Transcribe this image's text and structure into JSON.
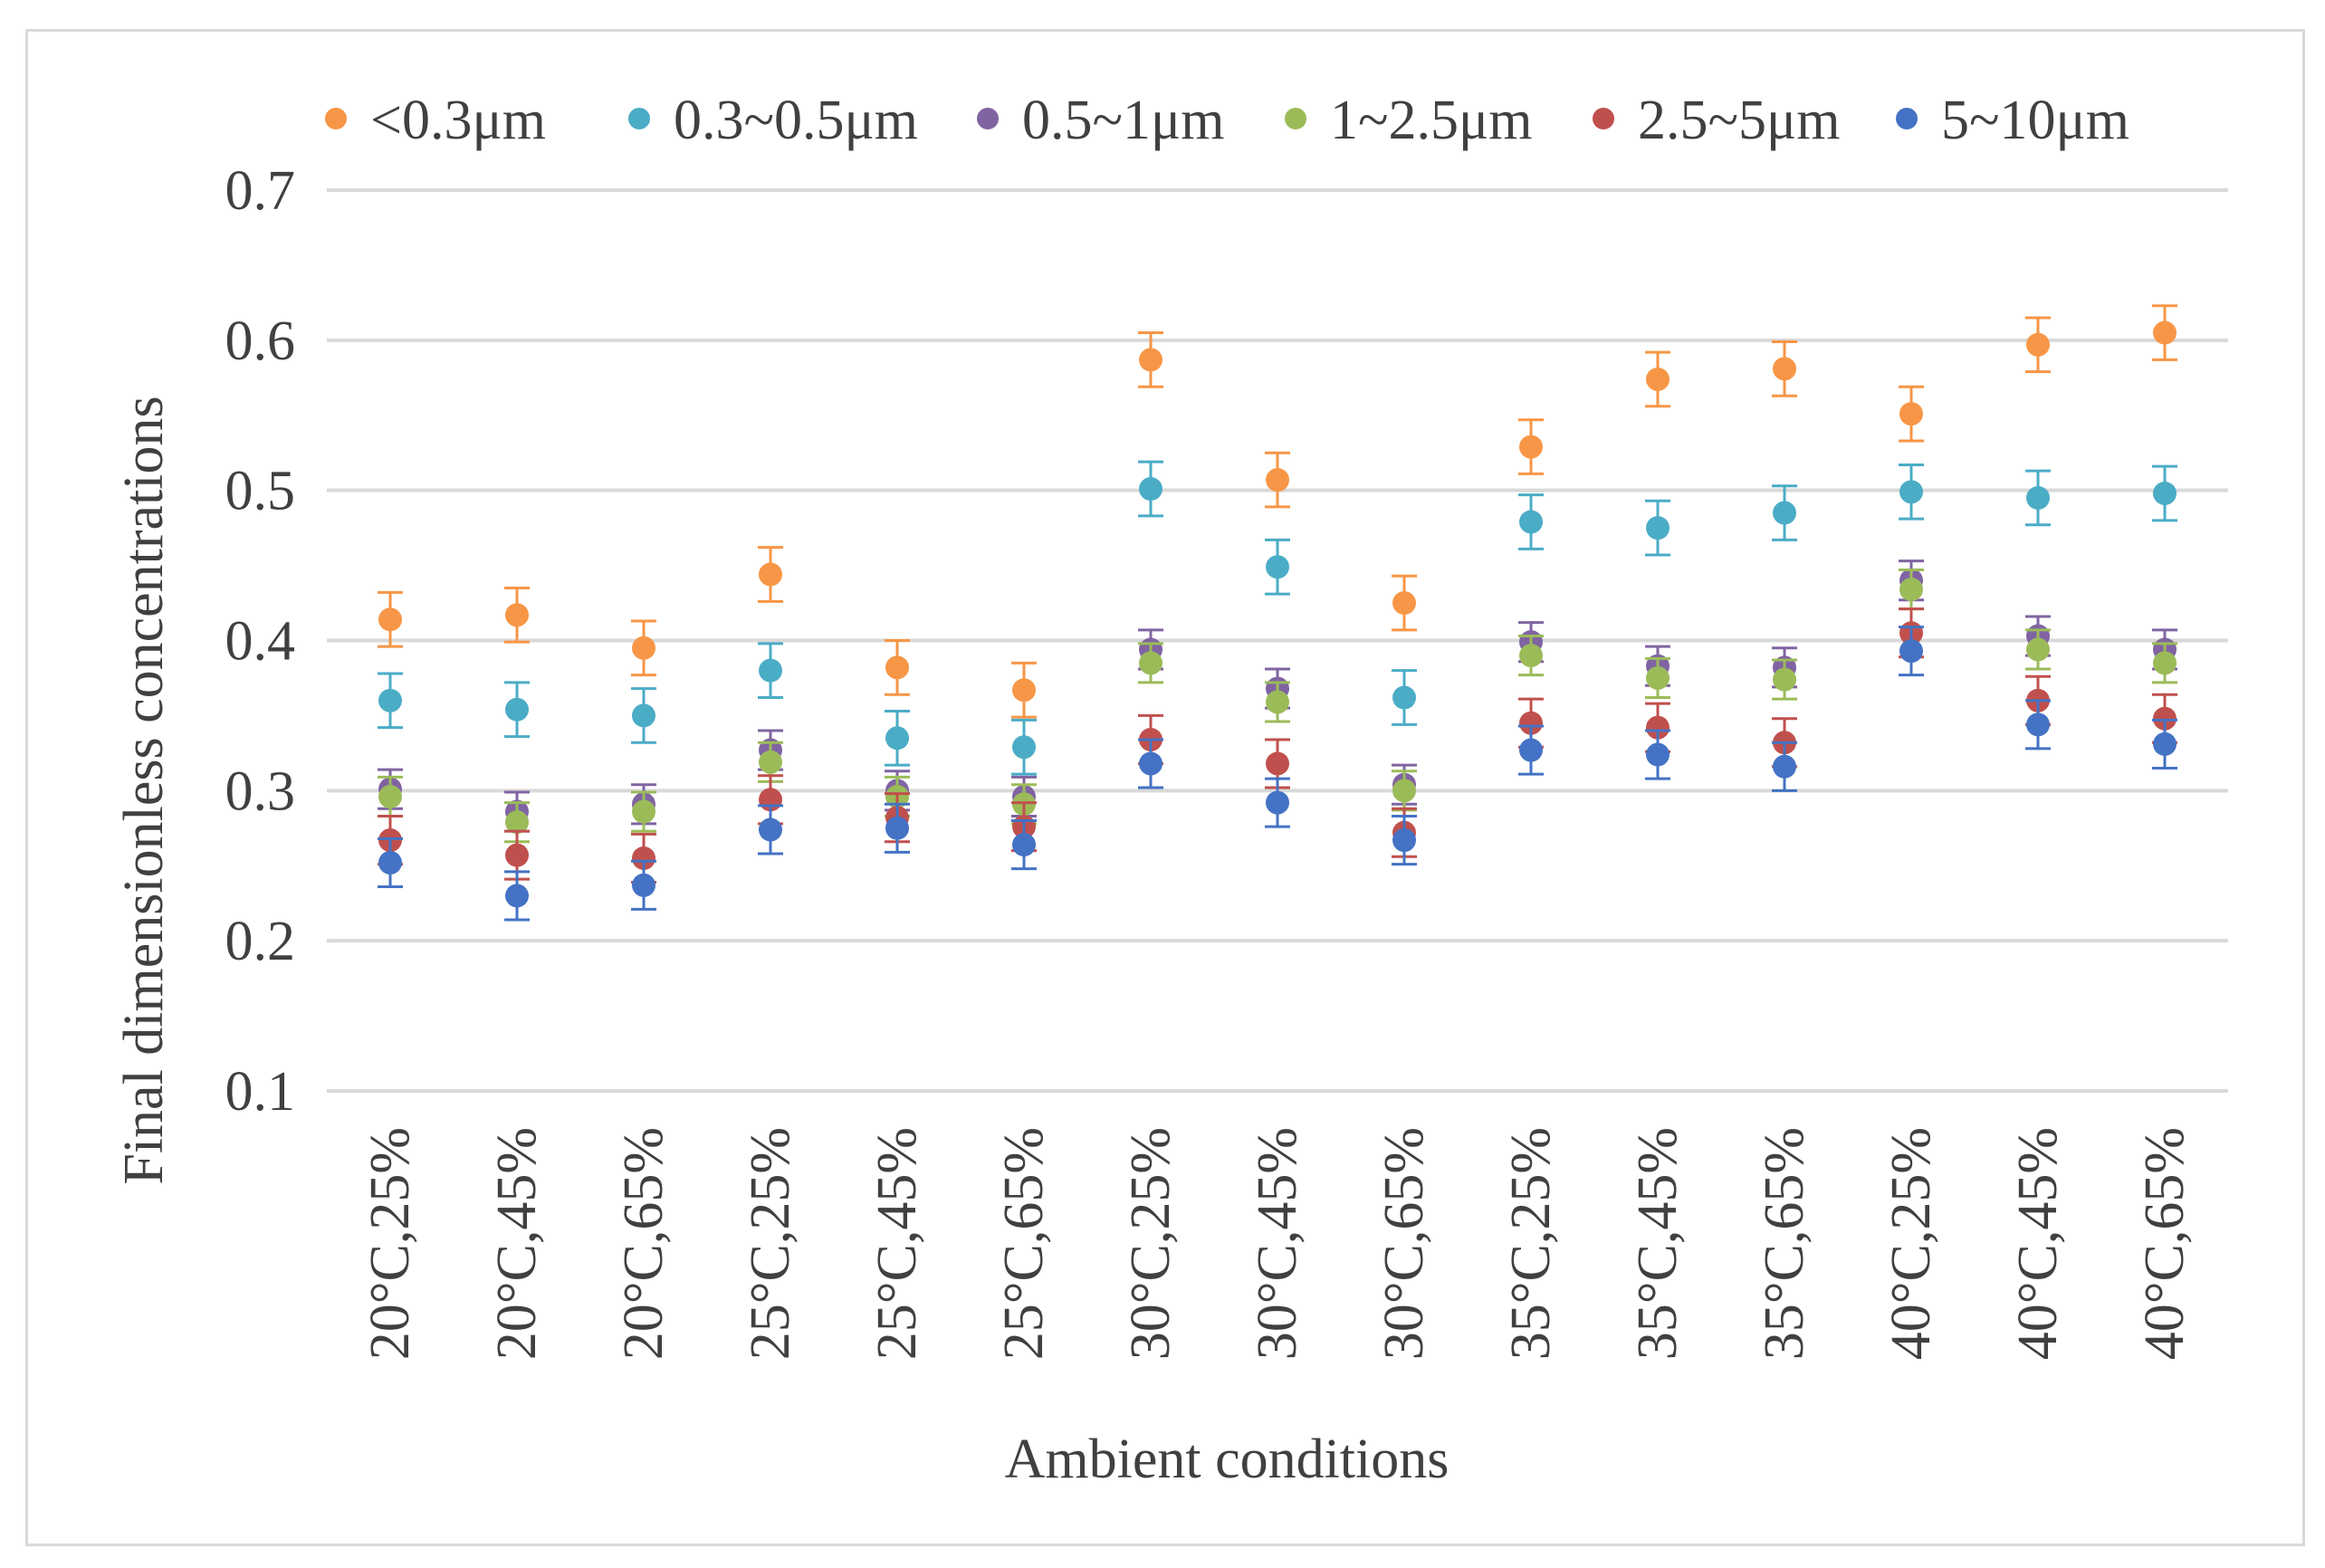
{
  "chart_data": {
    "type": "scatter",
    "title": "",
    "xlabel": "Ambient conditions",
    "ylabel": "Final dimensionless concentrations",
    "ylim": [
      0.1,
      0.7
    ],
    "yticks": [
      "0.1",
      "0.2",
      "0.3",
      "0.4",
      "0.5",
      "0.6",
      "0.7"
    ],
    "ytick_values": [
      0.1,
      0.2,
      0.3,
      0.4,
      0.5,
      0.6,
      0.7
    ],
    "grid": true,
    "legend_position": "top",
    "categories": [
      "20°C,25%",
      "20°C,45%",
      "20°C,65%",
      "25°C,25%",
      "25°C,45%",
      "25°C,65%",
      "30°C,25%",
      "30°C,45%",
      "30°C,65%",
      "35°C,25%",
      "35°C,45%",
      "35°C,65%",
      "40°C,25%",
      "40°C,45%",
      "40°C,65%"
    ],
    "series": [
      {
        "name": "<0.3μm",
        "color": "#F79646",
        "values": [
          0.414,
          0.417,
          0.395,
          0.444,
          0.382,
          0.367,
          0.587,
          0.507,
          0.425,
          0.529,
          0.574,
          0.581,
          0.551,
          0.597,
          0.605
        ],
        "error": 0.018
      },
      {
        "name": "0.3~0.5μm",
        "color": "#4BACC6",
        "values": [
          0.36,
          0.354,
          0.35,
          0.38,
          0.335,
          0.329,
          0.501,
          0.449,
          0.362,
          0.479,
          0.475,
          0.485,
          0.499,
          0.495,
          0.498
        ],
        "error": 0.018
      },
      {
        "name": "0.5~1μm",
        "color": "#8064A2",
        "values": [
          0.301,
          0.286,
          0.291,
          0.327,
          0.3,
          0.296,
          0.394,
          0.368,
          0.304,
          0.399,
          0.383,
          0.382,
          0.44,
          0.403,
          0.394
        ],
        "error": 0.013
      },
      {
        "name": "1~2.5μm",
        "color": "#9BBB59",
        "values": [
          0.296,
          0.279,
          0.286,
          0.319,
          0.296,
          0.291,
          0.385,
          0.359,
          0.3,
          0.39,
          0.375,
          0.374,
          0.434,
          0.394,
          0.385
        ],
        "error": 0.013
      },
      {
        "name": "2.5~5μm",
        "color": "#C0504D",
        "values": [
          0.267,
          0.257,
          0.255,
          0.294,
          0.282,
          0.276,
          0.334,
          0.318,
          0.272,
          0.345,
          0.342,
          0.332,
          0.405,
          0.36,
          0.348
        ],
        "error": 0.016
      },
      {
        "name": "5~10μm",
        "color": "#4472C4",
        "values": [
          0.252,
          0.23,
          0.237,
          0.274,
          0.275,
          0.264,
          0.318,
          0.292,
          0.267,
          0.327,
          0.324,
          0.316,
          0.393,
          0.344,
          0.331
        ],
        "error": 0.016
      }
    ]
  }
}
